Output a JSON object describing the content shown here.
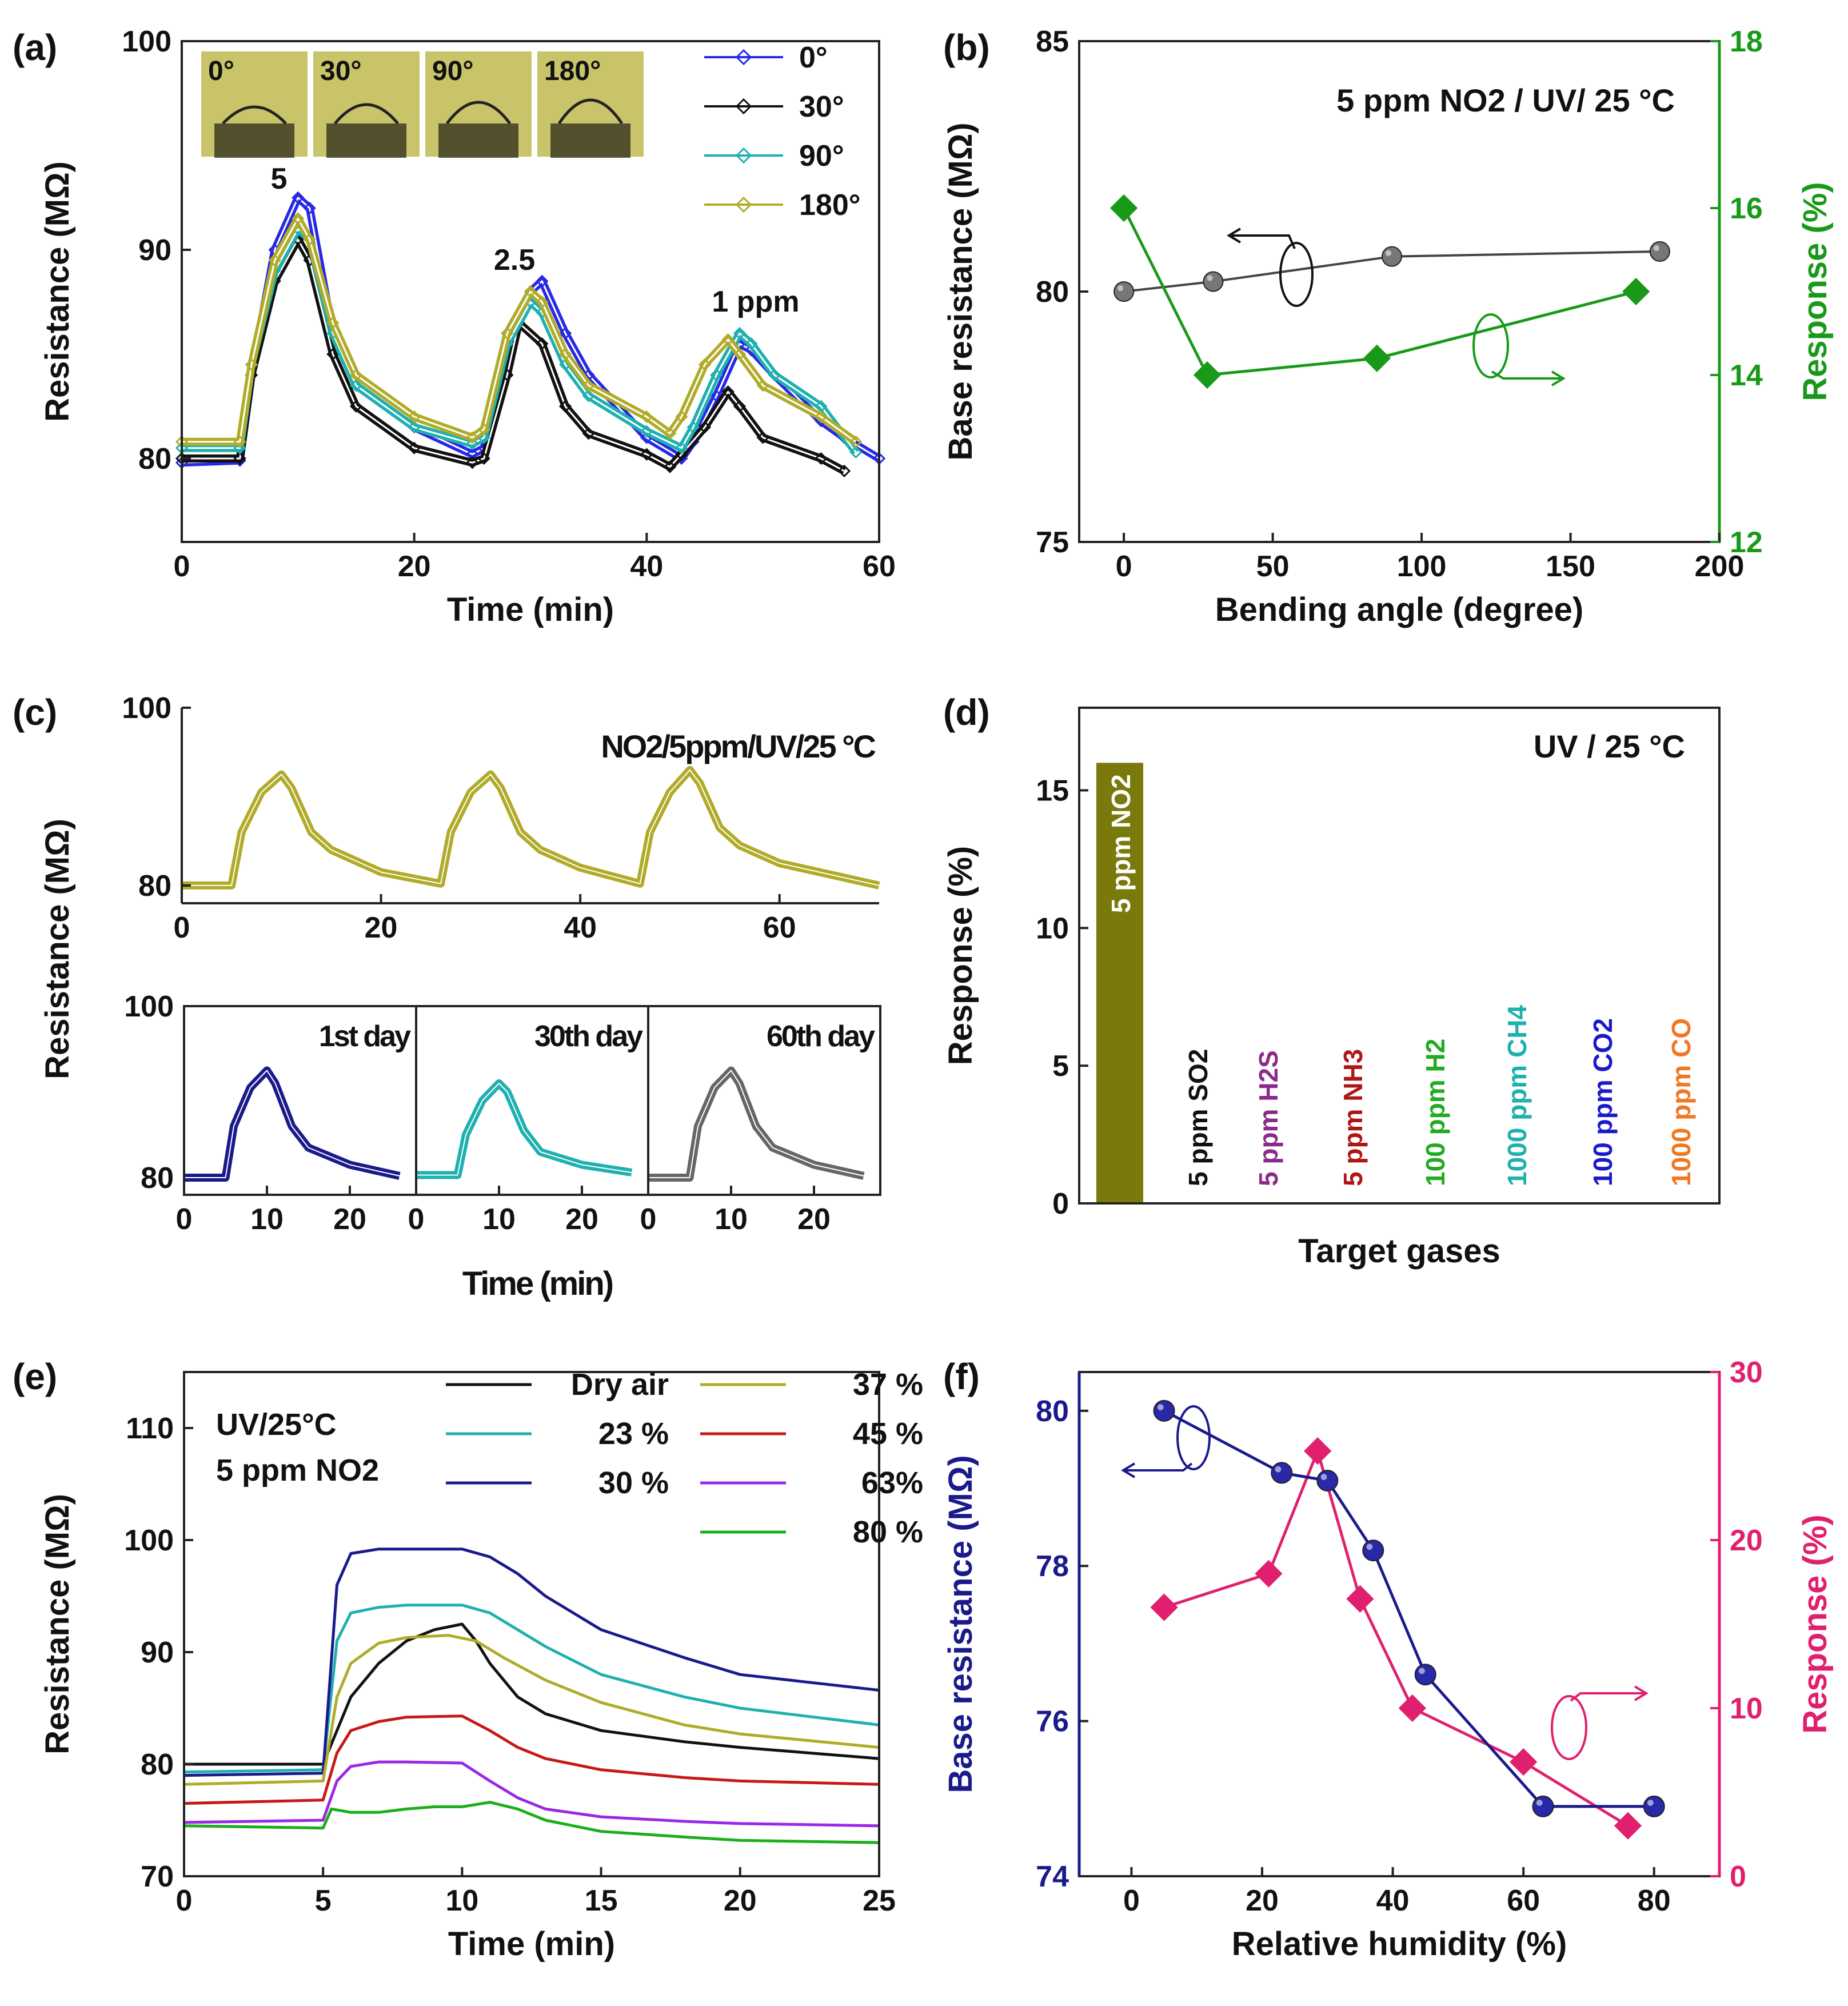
{
  "figure": {
    "panel_labels": [
      "(a)",
      "(b)",
      "(c)",
      "(d)",
      "(e)",
      "(f)"
    ],
    "series_colors": {
      "deg0": "#2828e6",
      "deg30": "#111111",
      "deg90": "#1fb0b0",
      "deg180": "#b0ac2a",
      "green": "#199919",
      "gray": "#666666",
      "magenta": "#e0206e",
      "navy": "#1a1a8c",
      "olive": "#7a7a0c"
    }
  },
  "chart_data": [
    {
      "id": "a",
      "type": "line",
      "xlabel": "Time (min)",
      "ylabel": "Resistance (MΩ)",
      "xlim": [
        0,
        60
      ],
      "ylim": [
        76,
        100
      ],
      "xticks": [
        0,
        20,
        40,
        60
      ],
      "yticks": [
        80,
        90,
        100
      ],
      "legend": [
        "0°",
        "30°",
        "90°",
        "180°"
      ],
      "inset_labels": [
        "0°",
        "30°",
        "90°",
        "180°"
      ],
      "annotations": [
        "5",
        "2.5",
        "1 ppm"
      ],
      "series": [
        {
          "name": "0°",
          "color": "#2828e6",
          "x": [
            0,
            5,
            6,
            8,
            10,
            11,
            13,
            15,
            20,
            25,
            26,
            28,
            30,
            31,
            33,
            35,
            40,
            43,
            44,
            46,
            48,
            49,
            51,
            55,
            57,
            60
          ],
          "y": [
            79.8,
            79.9,
            84,
            90,
            92.5,
            92,
            86,
            83.5,
            81.5,
            80.2,
            80.5,
            86,
            88,
            88.5,
            86,
            84,
            81,
            80,
            80.8,
            83,
            85.5,
            85.2,
            84,
            81.8,
            81,
            80
          ]
        },
        {
          "name": "30°",
          "color": "#111111",
          "x": [
            0,
            5,
            6,
            8,
            10,
            11,
            13,
            15,
            20,
            25,
            26,
            28,
            29,
            31,
            33,
            35,
            40,
            42,
            43,
            45,
            47,
            48,
            50,
            55,
            57
          ],
          "y": [
            80,
            80,
            84,
            88.5,
            90.5,
            89.5,
            85,
            82.5,
            80.5,
            79.8,
            80,
            84,
            86.5,
            85.5,
            82.5,
            81.2,
            80.2,
            79.6,
            80.2,
            81.5,
            83.2,
            82.5,
            81,
            80,
            79.4
          ]
        },
        {
          "name": "90°",
          "color": "#1fb0b0",
          "x": [
            0,
            5,
            6,
            8,
            10,
            11,
            13,
            15,
            20,
            25,
            26,
            28,
            30,
            31,
            33,
            35,
            40,
            43,
            44,
            46,
            48,
            49,
            51,
            55,
            58
          ],
          "y": [
            80.5,
            80.5,
            84.5,
            89,
            91,
            90.5,
            86,
            83.5,
            81.5,
            80.7,
            81,
            85.5,
            87.5,
            87,
            84.5,
            83,
            81.3,
            80.5,
            81.5,
            84,
            86,
            85.5,
            84,
            82.5,
            80.3
          ]
        },
        {
          "name": "180°",
          "color": "#b0ac2a",
          "x": [
            0,
            5,
            6,
            8,
            10,
            11,
            13,
            15,
            20,
            25,
            26,
            28,
            30,
            31,
            33,
            35,
            40,
            42,
            43,
            45,
            47,
            48,
            50,
            55,
            58
          ],
          "y": [
            80.8,
            80.8,
            84.5,
            89.5,
            91.5,
            90.5,
            86.5,
            84,
            82,
            81,
            81.4,
            86,
            88,
            87.5,
            85,
            83.5,
            82,
            81.2,
            82,
            84.5,
            85.7,
            85,
            83.5,
            82,
            80.8
          ]
        }
      ]
    },
    {
      "id": "b",
      "type": "scatter",
      "title": "5 ppm NO2 / UV/ 25 °C",
      "xlabel": "Bending angle (degree)",
      "ylabel_left": "Base resistance (MΩ)",
      "ylabel_right": "Response (%)",
      "xlim": [
        -15,
        200
      ],
      "ylim_left": [
        75,
        85
      ],
      "ylim_right": [
        12,
        18
      ],
      "xticks": [
        0,
        50,
        100,
        150,
        200
      ],
      "yticks_left": [
        75,
        80,
        85
      ],
      "yticks_right": [
        12,
        14,
        16,
        18
      ],
      "series": [
        {
          "name": "Base resistance",
          "axis": "left",
          "color": "#666666",
          "x": [
            0,
            30,
            90,
            180
          ],
          "y": [
            80.0,
            80.2,
            80.7,
            80.8
          ]
        },
        {
          "name": "Response",
          "axis": "right",
          "color": "#199919",
          "x": [
            0,
            28,
            85,
            172
          ],
          "y": [
            16.0,
            14.0,
            14.2,
            15.0
          ]
        }
      ]
    },
    {
      "id": "c",
      "type": "line",
      "ylabel": "Resistance (MΩ)",
      "xlabel": "Time (min)",
      "top": {
        "title": "NO2/5ppm/UV/25 °C",
        "xlim": [
          0,
          70
        ],
        "ylim": [
          78,
          100
        ],
        "xticks": [
          0,
          20,
          40,
          60
        ],
        "yticks": [
          80,
          100
        ],
        "color": "#b0ac2a",
        "x": [
          0,
          5,
          6,
          8,
          10,
          11,
          13,
          15,
          20,
          26,
          27,
          29,
          31,
          32,
          34,
          36,
          40,
          46,
          47,
          49,
          51,
          52,
          54,
          56,
          60,
          70
        ],
        "y": [
          80,
          80,
          86,
          90.5,
          92.5,
          91,
          86,
          84,
          81.5,
          80.2,
          86,
          90.5,
          92.5,
          91,
          86,
          84,
          82,
          80.2,
          86,
          90.5,
          93,
          91.5,
          86.5,
          84.5,
          82.5,
          80
        ]
      },
      "bottom": {
        "ylim": [
          78,
          100
        ],
        "yticks": [
          80,
          100
        ],
        "panels": [
          {
            "label": "1st day",
            "color": "#1a1a8c",
            "xlim": [
              0,
              28
            ],
            "xticks": [
              0,
              10,
              20
            ],
            "x": [
              0,
              5,
              6,
              8,
              10,
              11,
              13,
              15,
              20,
              26
            ],
            "y": [
              80,
              80,
              86,
              90.5,
              92.5,
              91,
              86,
              83.5,
              81.5,
              80.2
            ]
          },
          {
            "label": "30th day",
            "color": "#1fb0b0",
            "xlim": [
              0,
              28
            ],
            "xticks": [
              0,
              10,
              20
            ],
            "x": [
              0,
              5,
              6,
              8,
              10,
              11,
              13,
              15,
              20,
              26
            ],
            "y": [
              80.3,
              80.3,
              85,
              89,
              91,
              90,
              85.5,
              83,
              81.5,
              80.6
            ]
          },
          {
            "label": "60th day",
            "color": "#666666",
            "xlim": [
              0,
              28
            ],
            "xticks": [
              0,
              10,
              20
            ],
            "x": [
              0,
              5,
              6,
              8,
              10,
              11,
              13,
              15,
              20,
              26
            ],
            "y": [
              80,
              80,
              86,
              90.5,
              92.5,
              91,
              86,
              83.5,
              81.5,
              80.2
            ]
          }
        ]
      }
    },
    {
      "id": "d",
      "type": "bar",
      "title": "UV / 25 °C",
      "xlabel": "Target gases",
      "ylabel": "Response (%)",
      "ylim": [
        0,
        18
      ],
      "yticks": [
        0,
        5,
        10,
        15
      ],
      "categories": [
        "5 ppm NO2",
        "5 ppm SO2",
        "5 ppm H2S",
        "5 ppm NH3",
        "100 ppm H2",
        "1000 ppm CH4",
        "100 ppm CO2",
        "1000 ppm CO"
      ],
      "values": [
        16,
        0,
        0,
        0,
        0,
        0,
        0,
        0
      ],
      "colors": [
        "#7a7a0c",
        "#111111",
        "#8a2a8a",
        "#b01515",
        "#22aa22",
        "#1fb0b0",
        "#1a1acc",
        "#f07820"
      ]
    },
    {
      "id": "e",
      "type": "line",
      "xlabel": "Time (min)",
      "ylabel": "Resistance (MΩ)",
      "annotation_lines": [
        "UV/25°C",
        "5 ppm NO2"
      ],
      "xlim": [
        0,
        25
      ],
      "ylim": [
        70,
        115
      ],
      "xticks": [
        0,
        5,
        10,
        15,
        20,
        25
      ],
      "yticks": [
        70,
        80,
        90,
        100,
        110
      ],
      "series": [
        {
          "name": "Dry air",
          "color": "#111111",
          "x": [
            0,
            5,
            5.5,
            6,
            7,
            8,
            9,
            10,
            10.5,
            11,
            12,
            13,
            15,
            18,
            20,
            25
          ],
          "y": [
            80,
            80,
            83,
            86,
            89,
            91,
            92,
            92.5,
            91,
            89,
            86,
            84.5,
            83,
            82,
            81.5,
            80.5
          ]
        },
        {
          "name": "23 %",
          "color": "#1fb0b0",
          "x": [
            0,
            5,
            5.5,
            6,
            7,
            8,
            10,
            11,
            12,
            13,
            15,
            18,
            20,
            25
          ],
          "y": [
            79.3,
            79.5,
            91,
            93.5,
            94,
            94.2,
            94.2,
            93.5,
            92,
            90.5,
            88,
            86,
            85,
            83.5
          ]
        },
        {
          "name": "30 %",
          "color": "#1a1a8c",
          "x": [
            0,
            5,
            5.5,
            6,
            7,
            8,
            10,
            11,
            12,
            13,
            15,
            18,
            20,
            25
          ],
          "y": [
            79,
            79.2,
            96,
            98.8,
            99.2,
            99.2,
            99.2,
            98.5,
            97,
            95,
            92,
            89.5,
            88,
            86.6
          ]
        },
        {
          "name": "37 %",
          "color": "#b0ac2a",
          "x": [
            0,
            5,
            5.5,
            6,
            7,
            8,
            9.5,
            10.5,
            11.5,
            13,
            15,
            18,
            20,
            25
          ],
          "y": [
            78.2,
            78.5,
            86,
            89,
            90.8,
            91.3,
            91.5,
            91,
            89.5,
            87.5,
            85.5,
            83.5,
            82.7,
            81.5
          ]
        },
        {
          "name": "45 %",
          "color": "#c81818",
          "x": [
            0,
            5,
            5.5,
            6,
            7,
            8,
            10,
            11,
            12,
            13,
            15,
            18,
            20,
            25
          ],
          "y": [
            76.5,
            76.8,
            81,
            83,
            83.8,
            84.2,
            84.3,
            83,
            81.5,
            80.5,
            79.5,
            78.8,
            78.5,
            78.2
          ]
        },
        {
          "name": "63%",
          "color": "#9a28e6",
          "x": [
            0,
            5,
            5.5,
            6,
            7,
            8,
            10,
            11,
            12,
            13,
            15,
            18,
            20,
            25
          ],
          "y": [
            74.8,
            75,
            78.5,
            79.8,
            80.2,
            80.2,
            80.1,
            78.5,
            77,
            76,
            75.3,
            74.9,
            74.7,
            74.5
          ]
        },
        {
          "name": "80 %",
          "color": "#19b019",
          "x": [
            0,
            5,
            5.3,
            6,
            7,
            8,
            9,
            10,
            11,
            12,
            13,
            15,
            18,
            20,
            25
          ],
          "y": [
            74.5,
            74.3,
            76,
            75.7,
            75.7,
            76,
            76.2,
            76.2,
            76.6,
            76,
            75,
            74,
            73.5,
            73.2,
            73
          ]
        }
      ]
    },
    {
      "id": "f",
      "type": "scatter",
      "xlabel": "Relative humidity (%)",
      "ylabel_left": "Base resistance (MΩ)",
      "ylabel_right": "Response (%)",
      "xlim": [
        -8,
        90
      ],
      "ylim_left": [
        74,
        80.5
      ],
      "ylim_right": [
        0,
        30
      ],
      "xticks": [
        0,
        20,
        40,
        60,
        80
      ],
      "yticks_left": [
        74,
        76,
        78,
        80
      ],
      "yticks_right": [
        0,
        10,
        20,
        30
      ],
      "series": [
        {
          "name": "Base resistance",
          "axis": "left",
          "color": "#1a1a8c",
          "x": [
            5,
            23,
            30,
            37,
            45,
            63,
            80
          ],
          "y": [
            80.0,
            79.2,
            79.1,
            78.2,
            76.6,
            74.9,
            74.9
          ]
        },
        {
          "name": "Response",
          "axis": "right",
          "color": "#e0206e",
          "x": [
            5,
            21,
            28.5,
            35,
            43,
            60,
            76
          ],
          "y": [
            16,
            18,
            25.3,
            16.5,
            10,
            6.8,
            3
          ]
        }
      ]
    }
  ]
}
